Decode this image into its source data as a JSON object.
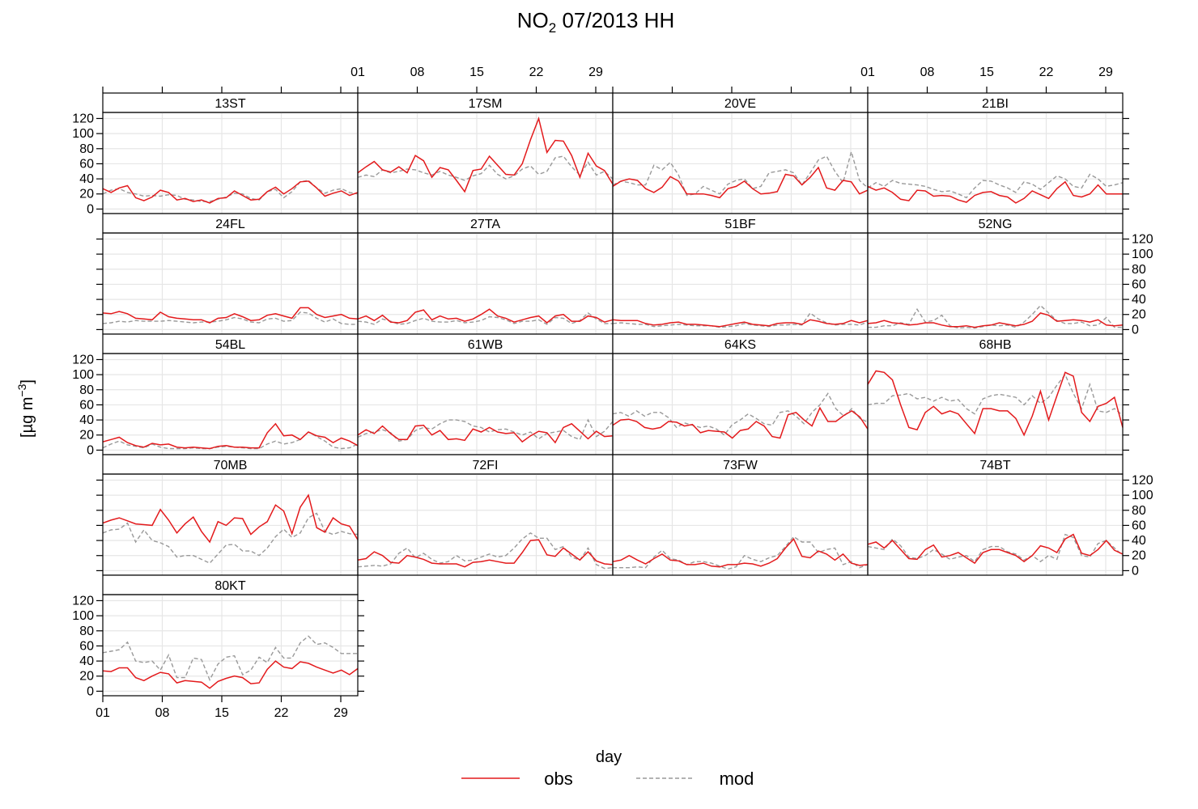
{
  "chart_data": {
    "type": "line",
    "title": "NO2 07/2013 HH",
    "title_main": "NO",
    "title_sub": "2",
    "title_rest": " 07/2013 HH",
    "xlabel": "day",
    "ylabel_text": "[µg m",
    "ylabel_sup": "−3",
    "ylabel_close": "]",
    "xlim": [
      1,
      31
    ],
    "ylim": [
      -6,
      128
    ],
    "x_ticks": [
      {
        "v": 1,
        "label": "01"
      },
      {
        "v": 8,
        "label": "08"
      },
      {
        "v": 15,
        "label": "15"
      },
      {
        "v": 22,
        "label": "22"
      },
      {
        "v": 29,
        "label": "29"
      }
    ],
    "y_ticks": [
      0,
      20,
      40,
      60,
      80,
      100,
      120
    ],
    "grid": true,
    "legend": {
      "position": "bottom",
      "items": [
        {
          "name": "obs",
          "color": "#e31a1c",
          "dash": "solid"
        },
        {
          "name": "mod",
          "color": "#999999",
          "dash": "dashed"
        }
      ]
    },
    "panels": [
      {
        "name": "13ST",
        "obs": [
          27,
          22,
          28,
          31,
          15,
          11,
          16,
          25,
          22,
          12,
          14,
          10,
          12,
          8,
          14,
          15,
          24,
          18,
          12,
          13,
          23,
          29,
          20,
          27,
          36,
          37,
          28,
          17,
          21,
          24,
          18,
          22
        ],
        "mod": [
          20,
          25,
          27,
          22,
          20,
          17,
          18,
          17,
          19,
          18,
          13,
          12,
          10,
          10,
          13,
          16,
          21,
          20,
          14,
          12,
          23,
          26,
          15,
          23,
          36,
          38,
          28,
          21,
          25,
          27,
          22,
          20
        ]
      },
      {
        "name": "17SM",
        "obs": [
          48,
          56,
          63,
          52,
          49,
          56,
          48,
          71,
          64,
          42,
          55,
          52,
          38,
          23,
          51,
          53,
          70,
          58,
          46,
          45,
          60,
          92,
          120,
          75,
          91,
          90,
          71,
          42,
          74,
          57,
          51,
          33
        ],
        "mod": [
          42,
          45,
          43,
          52,
          48,
          50,
          53,
          52,
          48,
          45,
          50,
          45,
          42,
          38,
          44,
          47,
          58,
          46,
          40,
          44,
          53,
          57,
          46,
          50,
          68,
          70,
          56,
          45,
          62,
          45,
          50,
          40
        ]
      },
      {
        "name": "20VE",
        "obs": [
          30,
          37,
          40,
          38,
          27,
          22,
          29,
          43,
          37,
          20,
          20,
          20,
          18,
          15,
          27,
          30,
          37,
          27,
          20,
          21,
          23,
          46,
          44,
          32,
          42,
          55,
          28,
          25,
          38,
          36,
          20,
          25
        ],
        "mod": [
          32,
          37,
          35,
          32,
          32,
          58,
          52,
          62,
          45,
          18,
          20,
          30,
          25,
          20,
          33,
          38,
          40,
          27,
          30,
          48,
          50,
          52,
          48,
          32,
          48,
          65,
          70,
          50,
          35,
          76,
          38,
          28
        ]
      },
      {
        "name": "21BI",
        "obs": [
          30,
          25,
          28,
          22,
          13,
          11,
          25,
          24,
          17,
          18,
          17,
          12,
          9,
          18,
          22,
          23,
          18,
          16,
          8,
          14,
          24,
          19,
          14,
          27,
          36,
          18,
          16,
          20,
          32,
          20,
          20,
          20
        ],
        "mod": [
          28,
          35,
          30,
          38,
          34,
          33,
          32,
          30,
          26,
          23,
          24,
          20,
          15,
          28,
          38,
          37,
          32,
          28,
          22,
          36,
          33,
          26,
          35,
          44,
          40,
          30,
          28,
          46,
          40,
          30,
          32,
          35
        ]
      },
      {
        "name": "24FL",
        "obs": [
          22,
          21,
          24,
          21,
          15,
          14,
          13,
          23,
          17,
          15,
          14,
          13,
          13,
          9,
          15,
          16,
          21,
          17,
          12,
          13,
          19,
          21,
          18,
          15,
          29,
          29,
          20,
          16,
          18,
          20,
          15,
          14
        ],
        "mod": [
          8,
          9,
          11,
          10,
          12,
          11,
          11,
          11,
          12,
          11,
          10,
          9,
          10,
          10,
          11,
          13,
          16,
          14,
          10,
          9,
          14,
          15,
          11,
          12,
          23,
          22,
          15,
          10,
          14,
          8,
          7,
          7
        ]
      },
      {
        "name": "27TA",
        "obs": [
          14,
          18,
          12,
          19,
          10,
          9,
          12,
          23,
          26,
          13,
          18,
          14,
          15,
          11,
          14,
          20,
          27,
          18,
          15,
          10,
          13,
          16,
          18,
          9,
          18,
          20,
          11,
          11,
          18,
          16,
          10,
          13
        ],
        "mod": [
          11,
          10,
          7,
          14,
          11,
          7,
          8,
          12,
          15,
          11,
          10,
          10,
          12,
          9,
          10,
          12,
          17,
          16,
          13,
          8,
          11,
          11,
          13,
          7,
          16,
          15,
          8,
          12,
          22,
          14,
          8,
          8
        ]
      },
      {
        "name": "51BF",
        "obs": [
          13,
          12,
          12,
          12,
          8,
          6,
          7,
          9,
          10,
          7,
          7,
          6,
          5,
          4,
          6,
          8,
          10,
          7,
          6,
          5,
          8,
          9,
          9,
          7,
          13,
          11,
          8,
          7,
          8,
          12,
          9,
          12
        ],
        "mod": [
          8,
          9,
          8,
          7,
          7,
          4,
          5,
          6,
          7,
          6,
          5,
          5,
          5,
          3,
          4,
          5,
          8,
          6,
          5,
          4,
          6,
          6,
          7,
          6,
          22,
          14,
          9,
          6,
          7,
          7,
          6,
          10
        ]
      },
      {
        "name": "52NG",
        "obs": [
          8,
          9,
          12,
          9,
          8,
          6,
          7,
          9,
          9,
          6,
          4,
          4,
          5,
          3,
          5,
          6,
          9,
          7,
          5,
          7,
          11,
          22,
          19,
          11,
          12,
          13,
          12,
          10,
          13,
          6,
          5,
          6
        ],
        "mod": [
          3,
          3,
          5,
          5,
          9,
          7,
          27,
          10,
          12,
          19,
          5,
          2,
          3,
          2,
          4,
          6,
          5,
          6,
          3,
          10,
          20,
          32,
          22,
          12,
          8,
          8,
          10,
          5,
          6,
          16,
          3,
          3
        ]
      },
      {
        "name": "54BL",
        "obs": [
          11,
          14,
          17,
          10,
          6,
          4,
          9,
          7,
          8,
          4,
          3,
          4,
          3,
          2,
          5,
          6,
          4,
          4,
          3,
          3,
          23,
          35,
          19,
          20,
          14,
          24,
          19,
          17,
          10,
          16,
          12,
          6
        ],
        "mod": [
          3,
          8,
          12,
          7,
          5,
          3,
          8,
          4,
          2,
          2,
          2,
          3,
          2,
          2,
          4,
          5,
          4,
          3,
          2,
          2,
          8,
          12,
          8,
          10,
          14,
          24,
          18,
          12,
          4,
          2,
          3,
          8
        ]
      },
      {
        "name": "61WB",
        "obs": [
          20,
          27,
          22,
          32,
          22,
          14,
          14,
          32,
          33,
          20,
          26,
          14,
          15,
          13,
          28,
          24,
          30,
          24,
          22,
          23,
          11,
          19,
          25,
          23,
          10,
          30,
          35,
          25,
          15,
          25,
          18,
          19
        ],
        "mod": [
          17,
          22,
          24,
          27,
          23,
          12,
          14,
          26,
          30,
          28,
          35,
          40,
          40,
          38,
          32,
          30,
          24,
          27,
          28,
          24,
          20,
          24,
          15,
          22,
          24,
          26,
          18,
          14,
          40,
          18,
          25,
          38
        ]
      },
      {
        "name": "64KS",
        "obs": [
          33,
          40,
          41,
          38,
          30,
          28,
          30,
          38,
          37,
          32,
          34,
          23,
          26,
          25,
          24,
          16,
          26,
          28,
          38,
          32,
          18,
          16,
          47,
          50,
          40,
          32,
          56,
          38,
          38,
          46,
          52,
          44,
          28
        ],
        "mod": [
          48,
          50,
          45,
          52,
          45,
          50,
          50,
          43,
          30,
          36,
          33,
          30,
          32,
          28,
          20,
          34,
          40,
          48,
          42,
          35,
          33,
          50,
          52,
          45,
          35,
          50,
          60,
          75,
          55,
          45,
          55,
          42,
          37
        ]
      },
      {
        "name": "68HB",
        "obs": [
          87,
          105,
          103,
          93,
          60,
          30,
          27,
          50,
          58,
          48,
          52,
          48,
          35,
          22,
          55,
          55,
          52,
          52,
          42,
          20,
          45,
          78,
          40,
          72,
          103,
          98,
          50,
          38,
          58,
          62,
          70,
          30
        ],
        "mod": [
          60,
          62,
          62,
          72,
          73,
          75,
          68,
          70,
          65,
          70,
          65,
          67,
          55,
          48,
          68,
          72,
          74,
          72,
          70,
          60,
          72,
          62,
          70,
          86,
          100,
          75,
          55,
          87,
          52,
          50,
          55,
          46
        ]
      },
      {
        "name": "70MB",
        "obs": [
          63,
          67,
          70,
          66,
          62,
          61,
          60,
          81,
          67,
          50,
          62,
          71,
          52,
          38,
          65,
          60,
          70,
          69,
          48,
          58,
          65,
          87,
          79,
          49,
          84,
          100,
          57,
          51,
          70,
          62,
          59,
          41
        ],
        "mod": [
          50,
          54,
          55,
          63,
          38,
          54,
          40,
          37,
          32,
          18,
          20,
          20,
          15,
          10,
          22,
          34,
          35,
          26,
          26,
          20,
          30,
          45,
          55,
          44,
          50,
          70,
          76,
          52,
          48,
          52,
          49,
          48
        ]
      },
      {
        "name": "72FI",
        "obs": [
          14,
          16,
          25,
          20,
          11,
          10,
          20,
          18,
          15,
          10,
          9,
          9,
          9,
          5,
          11,
          12,
          14,
          12,
          10,
          10,
          24,
          40,
          41,
          21,
          19,
          30,
          22,
          14,
          25,
          13,
          9,
          8
        ],
        "mod": [
          5,
          6,
          7,
          6,
          9,
          23,
          30,
          17,
          23,
          15,
          10,
          12,
          20,
          13,
          14,
          18,
          22,
          18,
          20,
          30,
          42,
          50,
          43,
          43,
          28,
          32,
          18,
          14,
          30,
          8,
          3,
          4
        ]
      },
      {
        "name": "73FW",
        "obs": [
          12,
          14,
          20,
          14,
          9,
          16,
          22,
          14,
          13,
          8,
          8,
          10,
          6,
          5,
          8,
          8,
          10,
          9,
          6,
          10,
          16,
          30,
          42,
          19,
          17,
          26,
          22,
          14,
          22,
          10,
          7,
          8
        ],
        "mod": [
          4,
          4,
          4,
          5,
          4,
          18,
          27,
          16,
          14,
          8,
          12,
          12,
          10,
          6,
          2,
          5,
          20,
          15,
          12,
          17,
          20,
          32,
          45,
          38,
          38,
          24,
          28,
          30,
          8,
          12,
          4,
          8
        ]
      },
      {
        "name": "74BT",
        "obs": [
          35,
          38,
          30,
          40,
          28,
          16,
          15,
          28,
          34,
          18,
          20,
          24,
          17,
          10,
          24,
          28,
          28,
          24,
          20,
          12,
          20,
          33,
          30,
          24,
          42,
          48,
          23,
          20,
          28,
          40,
          27,
          22
        ],
        "mod": [
          32,
          30,
          28,
          42,
          33,
          18,
          16,
          20,
          28,
          22,
          15,
          18,
          20,
          12,
          28,
          32,
          32,
          25,
          22,
          14,
          20,
          12,
          20,
          15,
          48,
          44,
          20,
          18,
          36,
          40,
          30,
          20
        ]
      },
      {
        "name": "80KT",
        "obs": [
          27,
          26,
          31,
          31,
          18,
          14,
          20,
          25,
          23,
          11,
          14,
          13,
          12,
          4,
          13,
          17,
          20,
          18,
          10,
          11,
          29,
          40,
          32,
          30,
          39,
          37,
          32,
          28,
          24,
          28,
          22,
          30
        ],
        "mod": [
          51,
          53,
          55,
          65,
          40,
          38,
          40,
          28,
          48,
          18,
          18,
          44,
          42,
          15,
          36,
          45,
          47,
          22,
          28,
          45,
          38,
          58,
          44,
          44,
          64,
          73,
          62,
          64,
          58,
          50,
          50,
          50
        ]
      }
    ]
  }
}
